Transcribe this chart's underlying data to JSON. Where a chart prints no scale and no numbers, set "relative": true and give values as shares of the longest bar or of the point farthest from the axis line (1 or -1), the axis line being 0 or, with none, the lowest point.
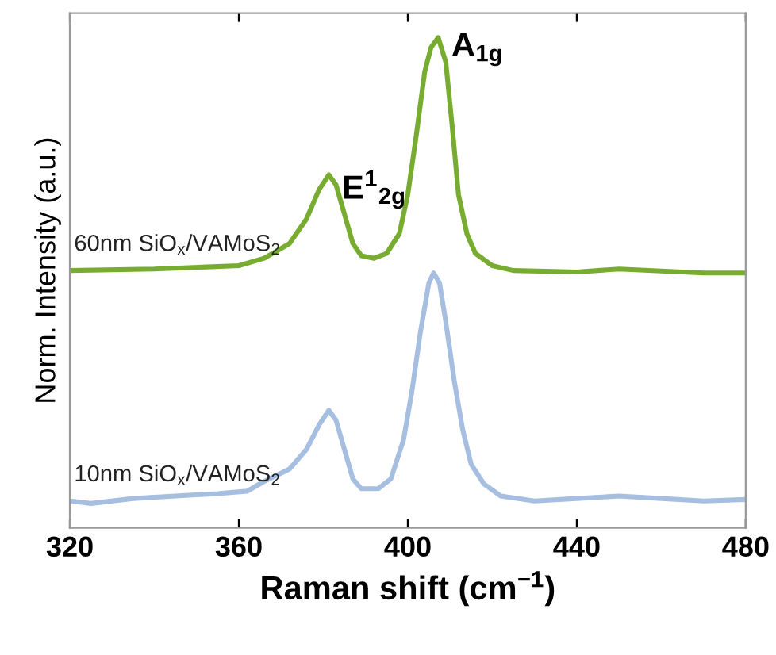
{
  "chart_data": {
    "type": "line",
    "relative": true,
    "xlabel": "Raman shift (cm$^{−1}$)",
    "ylabel": "Norm. Intensity (a.u.)",
    "xlim": [
      320,
      480
    ],
    "xticks": [
      320,
      360,
      400,
      440,
      480
    ],
    "grid": false,
    "legend": false,
    "marker": "none",
    "line_style": "solid",
    "series": [
      {
        "name": "60nm SiO$_{x}$/VAMoS$_{2}$",
        "color": "#77ac30",
        "x": [
          320,
          340,
          360,
          366,
          372,
          376,
          379,
          381.3,
          383,
          385,
          387,
          389,
          392,
          395,
          398,
          400,
          402,
          404,
          405.5,
          407.2,
          409,
          410.5,
          412,
          414,
          416,
          420,
          425,
          440,
          450,
          455,
          470,
          480
        ],
        "values": [
          0.525,
          0.528,
          0.535,
          0.55,
          0.58,
          0.63,
          0.69,
          0.72,
          0.7,
          0.64,
          0.58,
          0.555,
          0.55,
          0.56,
          0.6,
          0.68,
          0.8,
          0.93,
          0.98,
          1.0,
          0.95,
          0.82,
          0.68,
          0.6,
          0.56,
          0.535,
          0.525,
          0.522,
          0.528,
          0.526,
          0.52,
          0.52
        ]
      },
      {
        "name": "10nm SiO$_{x}$/VAMoS$_{2}$",
        "color": "#a6bfe0",
        "x": [
          320,
          325,
          335,
          345,
          355,
          362,
          366,
          372,
          376,
          379,
          381.3,
          383,
          385,
          387,
          389,
          393,
          396,
          399,
          401,
          403,
          405,
          406.1,
          407.5,
          409,
          411,
          413,
          415,
          418,
          422,
          430,
          440,
          450,
          460,
          470,
          480
        ],
        "values": [
          0.055,
          0.05,
          0.06,
          0.065,
          0.07,
          0.075,
          0.095,
          0.12,
          0.16,
          0.21,
          0.24,
          0.22,
          0.16,
          0.1,
          0.08,
          0.08,
          0.1,
          0.18,
          0.28,
          0.4,
          0.5,
          0.52,
          0.5,
          0.42,
          0.3,
          0.2,
          0.13,
          0.09,
          0.065,
          0.055,
          0.06,
          0.065,
          0.06,
          0.055,
          0.058
        ]
      }
    ],
    "annotations": [
      {
        "text": "E$^{1}$$_{2g}$",
        "x": 381.3,
        "y": 0.72
      },
      {
        "text": "A$_{1g}$",
        "x": 407.2,
        "y": 1.0
      }
    ]
  }
}
